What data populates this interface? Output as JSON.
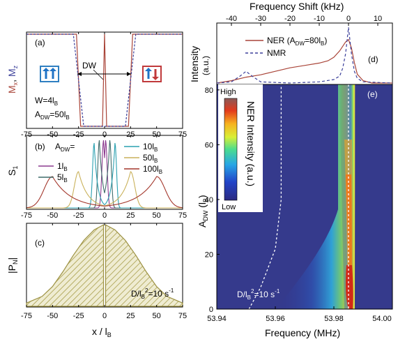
{
  "panels": {
    "a": {
      "label": "(a)",
      "ylabel_mx": "M",
      "ylabel_mx_sub": "x",
      "ylabel_sep": ", ",
      "ylabel_mz": "M",
      "ylabel_mz_sub": "z",
      "dw_label": "DW",
      "w_text": "W=4l",
      "w_sub": "B",
      "adw_text": "A",
      "adw_sub": "DW",
      "adw_value": "=50l",
      "adw_value_sub": "B",
      "colors": {
        "mx": "#a94438",
        "mz": "#3b3f9a",
        "blue_box": "#2f7fc1",
        "red_box": "#c0393b"
      }
    },
    "b": {
      "label": "(b)",
      "ylabel": "S",
      "ylabel_sub": "1",
      "legend_title": "A",
      "legend_title_sub": "DW",
      "legend_title_eq": "=",
      "legend": [
        {
          "name": "1l",
          "sub": "B",
          "color": "#8b3a8f",
          "adw": 1
        },
        {
          "name": "5l",
          "sub": "B",
          "color": "#3f6b6a",
          "adw": 5
        },
        {
          "name": "10l",
          "sub": "B",
          "color": "#2aa0b0",
          "adw": 10
        },
        {
          "name": "50l",
          "sub": "B",
          "color": "#c9b15a",
          "adw": 50
        },
        {
          "name": "100l",
          "sub": "B",
          "color": "#a3362b",
          "adw": 100
        }
      ]
    },
    "c": {
      "label": "(c)",
      "ylabel": "|P",
      "ylabel_sub": "N",
      "ylabel_end": "|",
      "xlabel": "x / l",
      "xlabel_sub": "B",
      "annot_a": "D/l",
      "annot_sub": "B",
      "annot_sup": "2",
      "annot_b": "=10 s",
      "annot_sup2": "-1",
      "fill_color": "#b7ad5a"
    },
    "d": {
      "label": "(d)",
      "top_axis_label": "Frequency Shift (kHz)",
      "top_ticks": [
        "-40",
        "-30",
        "-20",
        "-10",
        "0",
        "10"
      ],
      "ylabel_1": "Intensity",
      "ylabel_2": "(a.u.)",
      "legend_ner": "NER (A",
      "legend_ner_sub": "DW",
      "legend_ner_val": "=80l",
      "legend_ner_sub2": "B",
      "legend_ner_end": ")",
      "legend_nmr": "NMR",
      "colors": {
        "ner": "#a94438",
        "nmr": "#3b3f9a"
      }
    },
    "e": {
      "label": "(e)",
      "ylabel": "A",
      "ylabel_sub": "DW",
      "ylabel_unit": " (l",
      "ylabel_unit_sub": "B",
      "ylabel_end": ")",
      "xlabel": "Frequency (MHz)",
      "colorbar_title": "NER Intensity (a.u.)",
      "colorbar_high": "High",
      "colorbar_low": "Low",
      "annot_a": "D/l",
      "annot_sub": "B",
      "annot_sup": "2",
      "annot_b": "=10 s",
      "annot_sup2": "-1"
    }
  },
  "x_ticks_left": [
    "-75",
    "-50",
    "-25",
    "0",
    "25",
    "50",
    "75"
  ],
  "e_x_ticks": [
    "53.94",
    "53.96",
    "53.98",
    "54.00"
  ],
  "e_y_ticks": [
    "0",
    "20",
    "40",
    "60",
    "80"
  ],
  "chart_data": [
    {
      "type": "line",
      "panel": "a",
      "xlim": [
        -75,
        75
      ],
      "series": [
        {
          "name": "M",
          "component": "x",
          "style": "solid",
          "color": "#a94438",
          "x": [
            -75,
            -27,
            -25,
            -23,
            -2,
            0,
            2,
            23,
            25,
            27,
            75
          ],
          "y": [
            1,
            1,
            0,
            -1,
            -1,
            1,
            -1,
            -1,
            0,
            1,
            1
          ]
        },
        {
          "name": "M",
          "component": "z",
          "style": "dashed",
          "color": "#3b3f9a",
          "x": [
            -75,
            -30,
            -25,
            -20,
            20,
            25,
            30,
            75
          ],
          "y": [
            1,
            1,
            0,
            -1,
            -1,
            0,
            1,
            1
          ]
        }
      ]
    },
    {
      "type": "line",
      "panel": "b",
      "xlim": [
        -75,
        75
      ],
      "series": [
        {
          "name": "1l",
          "adw": 1,
          "peak_positions": [
            -1,
            1
          ],
          "peak_height": 0.97
        },
        {
          "name": "5l",
          "adw": 5,
          "peak_positions": [
            -5,
            5
          ],
          "peak_height": 0.97
        },
        {
          "name": "10l",
          "adw": 10,
          "peak_positions": [
            -10,
            10
          ],
          "peak_height": 0.93
        },
        {
          "name": "50l",
          "adw": 50,
          "peak_positions": [
            -25,
            25
          ],
          "peak_height": 0.52
        },
        {
          "name": "100l",
          "adw": 100,
          "peak_positions": [
            -50,
            50
          ],
          "peak_height": 0.45
        }
      ]
    },
    {
      "type": "area",
      "panel": "c",
      "xlim": [
        -75,
        75
      ],
      "x": [
        -75,
        -60,
        -50,
        -40,
        -30,
        -20,
        -10,
        -1,
        0,
        1,
        10,
        20,
        30,
        40,
        50,
        60,
        75
      ],
      "y": [
        0.04,
        0.12,
        0.24,
        0.42,
        0.62,
        0.8,
        0.93,
        0.99,
        0.0,
        0.99,
        0.93,
        0.8,
        0.62,
        0.42,
        0.24,
        0.12,
        0.04
      ]
    },
    {
      "type": "line",
      "panel": "d",
      "xlim_khz": [
        -45,
        15
      ],
      "series": [
        {
          "name": "NER (ADW=80lB)",
          "style": "solid",
          "x_khz": [
            -45,
            -40,
            -35,
            -30,
            -25,
            -20,
            -15,
            -10,
            -7,
            -5,
            -3,
            -1,
            0,
            1,
            2,
            3,
            5,
            8,
            15
          ],
          "y": [
            0,
            0.04,
            0.1,
            0.14,
            0.2,
            0.26,
            0.3,
            0.34,
            0.38,
            0.44,
            0.55,
            0.7,
            0.74,
            0.6,
            0.35,
            0.15,
            0.04,
            0,
            0
          ]
        },
        {
          "name": "NMR",
          "style": "dashed",
          "x_khz": [
            -45,
            -40,
            -37,
            -35,
            -33,
            -30,
            -20,
            -10,
            -5,
            -3,
            -2,
            -1,
            0,
            1,
            2,
            3,
            5,
            15
          ],
          "y": [
            0,
            0.02,
            0.12,
            0.2,
            0.12,
            0.02,
            0,
            0.02,
            0.06,
            0.12,
            0.25,
            0.5,
            0.95,
            0.5,
            0.2,
            0.08,
            0.02,
            0
          ]
        }
      ]
    },
    {
      "type": "heatmap",
      "panel": "e",
      "xlim": [
        53.94,
        54.0
      ],
      "ylim": [
        0,
        82
      ],
      "peak_frequency_mhz": 53.985,
      "dashed_curve_frequency_at_adw": {
        "x": [
          53.951,
          53.955,
          53.96,
          53.962,
          53.962
        ],
        "y": [
          0,
          8,
          22,
          40,
          82
        ]
      }
    }
  ]
}
